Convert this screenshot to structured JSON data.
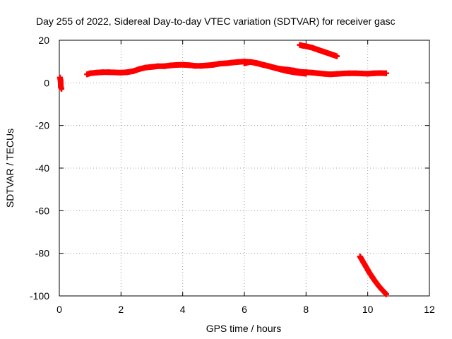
{
  "chart_data": {
    "type": "scatter",
    "title": "Day 255 of 2022, Sidereal Day-to-day VTEC variation (SDTVAR) for receiver gasc",
    "xlabel": "GPS time / hours",
    "ylabel": "SDTVAR / TECUs",
    "xlim": [
      0,
      12
    ],
    "ylim": [
      -100,
      20
    ],
    "xticks": [
      "0",
      "2",
      "4",
      "6",
      "8",
      "10",
      "12"
    ],
    "yticks": [
      "20",
      "0",
      "-20",
      "-40",
      "-60",
      "-80",
      "-100"
    ],
    "grid": true,
    "legend": "none",
    "marker": "plus",
    "color": "#ff0000",
    "series": [
      {
        "x": [
          0.02,
          0.04,
          0.05,
          0.07
        ],
        "y": [
          2.5,
          1.2,
          -2.0,
          -2.8
        ]
      },
      {
        "x": [
          0.9,
          1.0,
          1.2,
          1.4,
          1.6,
          1.8,
          2.0,
          2.2,
          2.4,
          2.6,
          2.8,
          3.0,
          3.2,
          3.4,
          3.6,
          3.8,
          4.0,
          4.2,
          4.4,
          4.6,
          4.8,
          5.0,
          5.2,
          5.4,
          5.6,
          5.8,
          6.0,
          6.2,
          6.4,
          6.6,
          6.8,
          7.0,
          7.2,
          7.4,
          7.6,
          7.8,
          8.0,
          8.2,
          8.4,
          8.6,
          8.8,
          9.0,
          9.2,
          9.4,
          9.6,
          9.8,
          10.0,
          10.2,
          10.4,
          10.6
        ],
        "y": [
          4.0,
          4.5,
          4.8,
          5.0,
          5.0,
          4.9,
          4.8,
          5.0,
          5.5,
          6.5,
          7.2,
          7.5,
          7.8,
          7.8,
          8.2,
          8.4,
          8.5,
          8.3,
          8.0,
          8.0,
          8.2,
          8.5,
          9.0,
          9.2,
          9.5,
          9.8,
          10.0,
          9.8,
          9.2,
          8.5,
          7.8,
          7.0,
          6.5,
          6.2,
          5.8,
          5.2,
          5.0,
          4.8,
          4.5,
          4.2,
          4.0,
          4.2,
          4.4,
          4.5,
          4.5,
          4.4,
          4.3,
          4.5,
          4.6,
          4.5
        ]
      },
      {
        "x": [
          6.0,
          6.2,
          6.4,
          6.6,
          6.8,
          7.0,
          7.2,
          7.4,
          7.6,
          7.8,
          8.0
        ],
        "y": [
          9.2,
          9.8,
          9.3,
          8.5,
          7.8,
          7.0,
          6.2,
          5.5,
          5.0,
          4.6,
          4.3
        ]
      },
      {
        "x": [
          7.8,
          7.9,
          8.0,
          8.2,
          8.4,
          8.6,
          8.8,
          9.0
        ],
        "y": [
          17.8,
          17.4,
          17.2,
          16.5,
          15.5,
          14.5,
          13.5,
          12.5
        ]
      },
      {
        "x": [
          9.75,
          9.85,
          9.95,
          10.05,
          10.15,
          10.25,
          10.35,
          10.45,
          10.55,
          10.6
        ],
        "y": [
          -81.5,
          -84.0,
          -86.5,
          -89.0,
          -91.2,
          -93.3,
          -95.2,
          -96.9,
          -98.4,
          -99.2
        ]
      }
    ]
  }
}
